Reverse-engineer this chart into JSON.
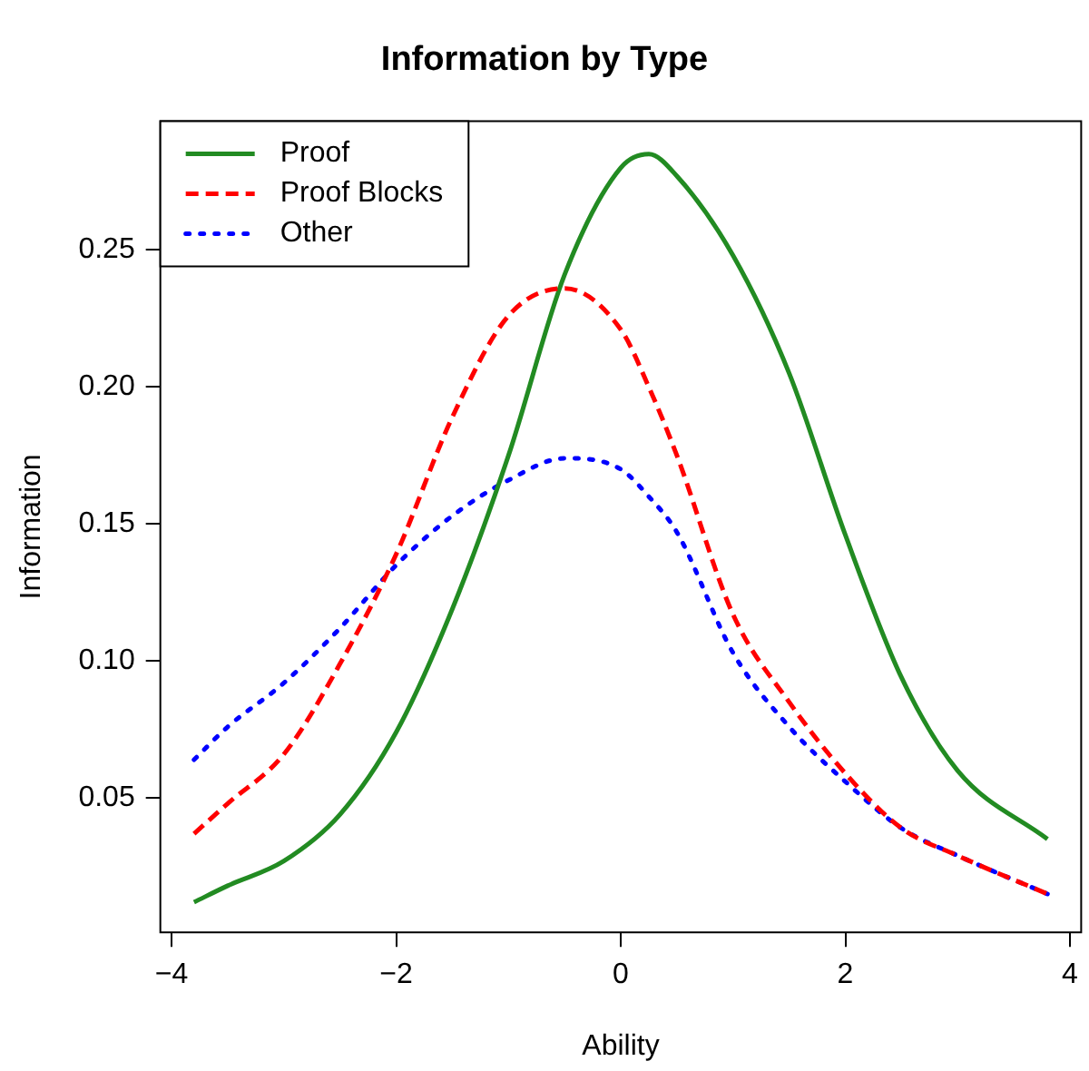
{
  "chart_data": {
    "type": "line",
    "title": "Information by Type",
    "xlabel": "Ability",
    "ylabel": "Information",
    "x": [
      -3.8,
      -3.5,
      -3,
      -2.5,
      -2,
      -1.5,
      -1,
      -0.5,
      0,
      0.25,
      0.5,
      1,
      1.5,
      2,
      2.5,
      3,
      3.8
    ],
    "series": [
      {
        "name": "Proof",
        "color": "#228b22",
        "line_style": "solid",
        "values": [
          0.012,
          0.018,
          0.027,
          0.044,
          0.074,
          0.119,
          0.175,
          0.241,
          0.28,
          0.285,
          0.277,
          0.248,
          0.205,
          0.146,
          0.094,
          0.06,
          0.035
        ]
      },
      {
        "name": "Proof Blocks",
        "color": "#ff0000",
        "line_style": "dashed",
        "values": [
          0.037,
          0.048,
          0.066,
          0.099,
          0.139,
          0.189,
          0.226,
          0.236,
          0.221,
          0.2,
          0.175,
          0.117,
          0.085,
          0.059,
          0.039,
          0.029,
          0.015
        ]
      },
      {
        "name": "Other",
        "color": "#0000ff",
        "line_style": "dotted",
        "values": [
          0.064,
          0.076,
          0.092,
          0.112,
          0.135,
          0.153,
          0.166,
          0.174,
          0.17,
          0.16,
          0.147,
          0.103,
          0.076,
          0.056,
          0.039,
          0.029,
          0.015
        ]
      }
    ],
    "xlim": [
      -4.1,
      4.1
    ],
    "xticks": [
      -4,
      -2,
      0,
      2,
      4
    ],
    "ylim": [
      0.001,
      0.297
    ],
    "yticks": [
      0.05,
      {
        "value": 0.1,
        "label": "0.10"
      },
      0.15,
      {
        "value": 0.2,
        "label": "0.20"
      },
      0.25
    ],
    "grid": false,
    "legend": "top left",
    "marker": "none"
  }
}
